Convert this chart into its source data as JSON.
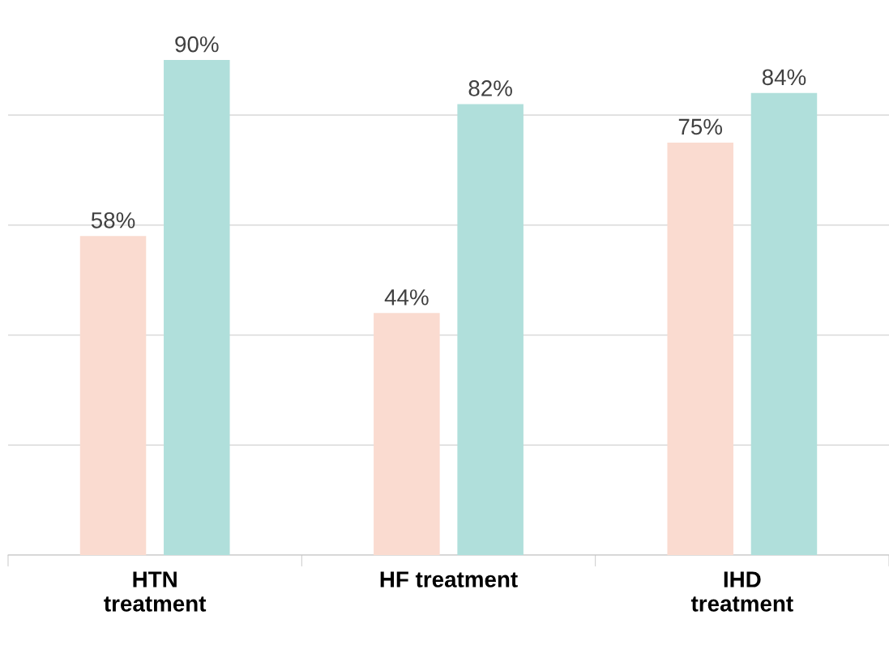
{
  "chart_data": {
    "type": "bar",
    "categories": [
      "HTN\ntreatment",
      "HF treatment",
      "IHD\ntreatment"
    ],
    "series": [
      {
        "color": "#fadbd0",
        "values": [
          58,
          44,
          75
        ],
        "value_labels": [
          "58%",
          "44%",
          "75%"
        ]
      },
      {
        "color": "#b0dfdb",
        "values": [
          90,
          82,
          84
        ],
        "value_labels": [
          "90%",
          "82%",
          "84%"
        ]
      }
    ],
    "tick_labels": "x",
    "grid": "y"
  }
}
